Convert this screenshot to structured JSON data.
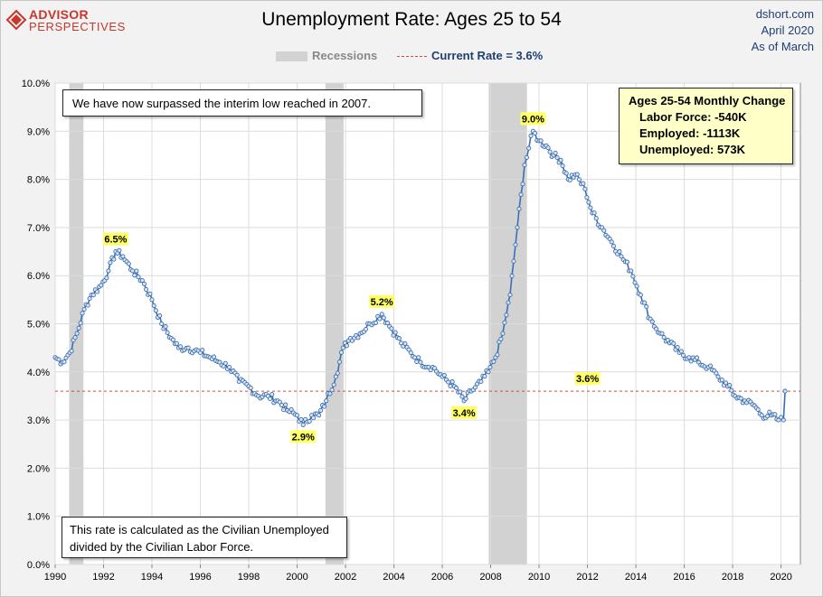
{
  "brand": {
    "line1": "ADVISOR",
    "line2": "PERSPECTIVES"
  },
  "title": "Unemployment Rate: Ages 25 to 54",
  "source": {
    "site": "dshort.com",
    "date": "April 2020",
    "asof": "As of March"
  },
  "legend": {
    "recessions": "Recessions",
    "current": "Current Rate = 3.6%"
  },
  "notes": {
    "top": "We have now surpassed the interim low reached in 2007.",
    "bottom_line1": "This rate is calculated as the Civilian Unemployed",
    "bottom_line2": "divided by the Civilian Labor Force."
  },
  "monthly_change": {
    "header": "Ages 25-54  Monthly Change",
    "labor_force": "Labor Force:  -540K",
    "employed": "Employed:  -1113K",
    "unemployed": "Unemployed:  573K"
  },
  "colors": {
    "line": "#3d6fb0",
    "marker_fill": "#dbe6f5",
    "recession": "#d2d2d2",
    "current_line": "#c0504d",
    "callout": "#ffff66"
  },
  "chart_data": {
    "type": "line",
    "x_range": [
      1990,
      2020.8
    ],
    "ylim": [
      0,
      10
    ],
    "y_ticks": [
      "0.0%",
      "1.0%",
      "2.0%",
      "3.0%",
      "4.0%",
      "5.0%",
      "6.0%",
      "7.0%",
      "8.0%",
      "9.0%",
      "10.0%"
    ],
    "x_ticks": [
      "1990",
      "1992",
      "1994",
      "1996",
      "1998",
      "2000",
      "2002",
      "2004",
      "2006",
      "2008",
      "2010",
      "2012",
      "2014",
      "2016",
      "2018",
      "2020"
    ],
    "grid": true,
    "current_rate": 3.6,
    "recessions": [
      [
        1990.58,
        1991.17
      ],
      [
        2001.17,
        2001.92
      ],
      [
        2007.92,
        2009.5
      ]
    ],
    "callouts": [
      {
        "label": "6.5%",
        "x": 1992.5,
        "y": 6.5
      },
      {
        "label": "5.2%",
        "x": 2003.5,
        "y": 5.2
      },
      {
        "label": "2.9%",
        "x": 2000.25,
        "y": 2.9
      },
      {
        "label": "3.4%",
        "x": 2006.9,
        "y": 3.4
      },
      {
        "label": "9.0%",
        "x": 2009.75,
        "y": 9.0
      },
      {
        "label": "3.6%",
        "x": 2012.0,
        "y": 3.6
      }
    ],
    "keypoints": [
      [
        1990.0,
        4.3
      ],
      [
        1990.3,
        4.2
      ],
      [
        1990.6,
        4.4
      ],
      [
        1990.9,
        4.8
      ],
      [
        1991.2,
        5.3
      ],
      [
        1991.5,
        5.6
      ],
      [
        1991.9,
        5.8
      ],
      [
        1992.2,
        6.1
      ],
      [
        1992.5,
        6.5
      ],
      [
        1992.8,
        6.4
      ],
      [
        1993.2,
        6.1
      ],
      [
        1993.6,
        5.9
      ],
      [
        1994.0,
        5.5
      ],
      [
        1994.4,
        5.0
      ],
      [
        1994.8,
        4.7
      ],
      [
        1995.1,
        4.5
      ],
      [
        1995.5,
        4.5
      ],
      [
        1996.0,
        4.4
      ],
      [
        1996.4,
        4.3
      ],
      [
        1996.8,
        4.2
      ],
      [
        1997.2,
        4.1
      ],
      [
        1997.6,
        3.8
      ],
      [
        1998.0,
        3.7
      ],
      [
        1998.4,
        3.5
      ],
      [
        1998.8,
        3.5
      ],
      [
        1999.2,
        3.4
      ],
      [
        1999.6,
        3.2
      ],
      [
        2000.0,
        3.1
      ],
      [
        2000.25,
        2.9
      ],
      [
        2000.6,
        3.1
      ],
      [
        2000.9,
        3.1
      ],
      [
        2001.2,
        3.4
      ],
      [
        2001.6,
        3.9
      ],
      [
        2001.9,
        4.5
      ],
      [
        2002.2,
        4.7
      ],
      [
        2002.6,
        4.8
      ],
      [
        2003.0,
        5.0
      ],
      [
        2003.5,
        5.2
      ],
      [
        2003.9,
        4.9
      ],
      [
        2004.3,
        4.6
      ],
      [
        2004.7,
        4.4
      ],
      [
        2005.1,
        4.2
      ],
      [
        2005.6,
        4.1
      ],
      [
        2006.0,
        3.9
      ],
      [
        2006.5,
        3.7
      ],
      [
        2006.9,
        3.4
      ],
      [
        2007.2,
        3.6
      ],
      [
        2007.6,
        3.8
      ],
      [
        2007.9,
        4.0
      ],
      [
        2008.2,
        4.3
      ],
      [
        2008.5,
        4.8
      ],
      [
        2008.8,
        5.6
      ],
      [
        2009.1,
        7.0
      ],
      [
        2009.4,
        8.3
      ],
      [
        2009.75,
        9.0
      ],
      [
        2010.0,
        8.8
      ],
      [
        2010.3,
        8.7
      ],
      [
        2010.6,
        8.5
      ],
      [
        2010.9,
        8.4
      ],
      [
        2011.2,
        8.0
      ],
      [
        2011.5,
        8.1
      ],
      [
        2011.9,
        7.8
      ],
      [
        2012.2,
        7.3
      ],
      [
        2012.6,
        7.0
      ],
      [
        2013.0,
        6.7
      ],
      [
        2013.4,
        6.4
      ],
      [
        2013.8,
        6.1
      ],
      [
        2014.2,
        5.6
      ],
      [
        2014.6,
        5.1
      ],
      [
        2015.0,
        4.8
      ],
      [
        2015.4,
        4.6
      ],
      [
        2015.8,
        4.4
      ],
      [
        2016.2,
        4.3
      ],
      [
        2016.6,
        4.2
      ],
      [
        2017.0,
        4.1
      ],
      [
        2017.4,
        3.9
      ],
      [
        2017.8,
        3.7
      ],
      [
        2018.1,
        3.5
      ],
      [
        2018.5,
        3.4
      ],
      [
        2018.9,
        3.3
      ],
      [
        2019.2,
        3.1
      ],
      [
        2019.6,
        3.1
      ],
      [
        2019.9,
        3.0
      ],
      [
        2020.1,
        3.0
      ],
      [
        2020.17,
        3.6
      ]
    ]
  }
}
